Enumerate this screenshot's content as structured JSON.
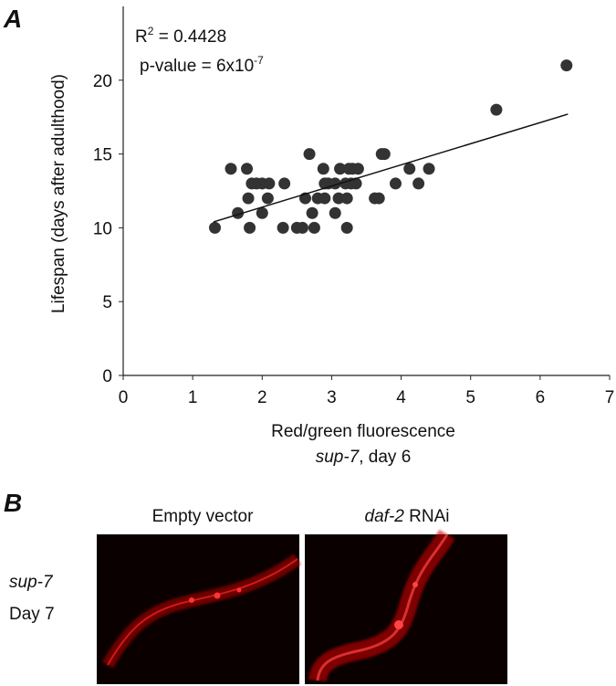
{
  "chart_data": {
    "type": "scatter",
    "panel_label": "A",
    "ylabel": "Lifespan (days after adulthood)",
    "xlabel": "Red/green fluorescence",
    "xlabel_line2": {
      "gene": "sup-7",
      "rest": ", day 6"
    },
    "r2": {
      "base": "R",
      "sup": "2",
      "rest": " = 0.4428"
    },
    "pvalue": {
      "base": "p-value = 6x10",
      "sup": "-7"
    },
    "xlim": [
      0,
      7
    ],
    "xticks": [
      0,
      1,
      2,
      3,
      4,
      5,
      6,
      7
    ],
    "ylim": [
      0,
      25
    ],
    "yticks": [
      0,
      5,
      10,
      15,
      20
    ],
    "color": "#333333",
    "x": [
      1.32,
      1.55,
      1.65,
      1.78,
      1.8,
      1.82,
      1.85,
      1.92,
      2.0,
      2.0,
      2.08,
      2.1,
      2.3,
      2.32,
      2.5,
      2.58,
      2.62,
      2.68,
      2.72,
      2.75,
      2.8,
      2.88,
      2.9,
      2.9,
      2.95,
      3.05,
      3.05,
      3.1,
      3.12,
      3.2,
      3.22,
      3.22,
      3.25,
      3.28,
      3.3,
      3.35,
      3.38,
      3.62,
      3.68,
      3.72,
      3.76,
      3.92,
      4.12,
      4.25,
      4.4,
      5.37,
      6.38
    ],
    "values": [
      10,
      14,
      11,
      14,
      12,
      10,
      13,
      13,
      11,
      13,
      12,
      13,
      10,
      13,
      10,
      10,
      12,
      15,
      11,
      10,
      12,
      14,
      13,
      12,
      13,
      11,
      13,
      12,
      14,
      13,
      12,
      10,
      14,
      13,
      14,
      13,
      14,
      12,
      12,
      15,
      15,
      13,
      14,
      13,
      14,
      18,
      21
    ],
    "trendline": {
      "x": [
        1.3,
        6.4
      ],
      "y": [
        10.4,
        17.7
      ]
    }
  },
  "panel_b": {
    "label": "B",
    "columns": [
      {
        "text": "Empty vector"
      },
      {
        "gene": "daf-2",
        "rest": " RNAi"
      }
    ],
    "row_label": {
      "gene": "sup-7",
      "day": "Day 7"
    }
  }
}
